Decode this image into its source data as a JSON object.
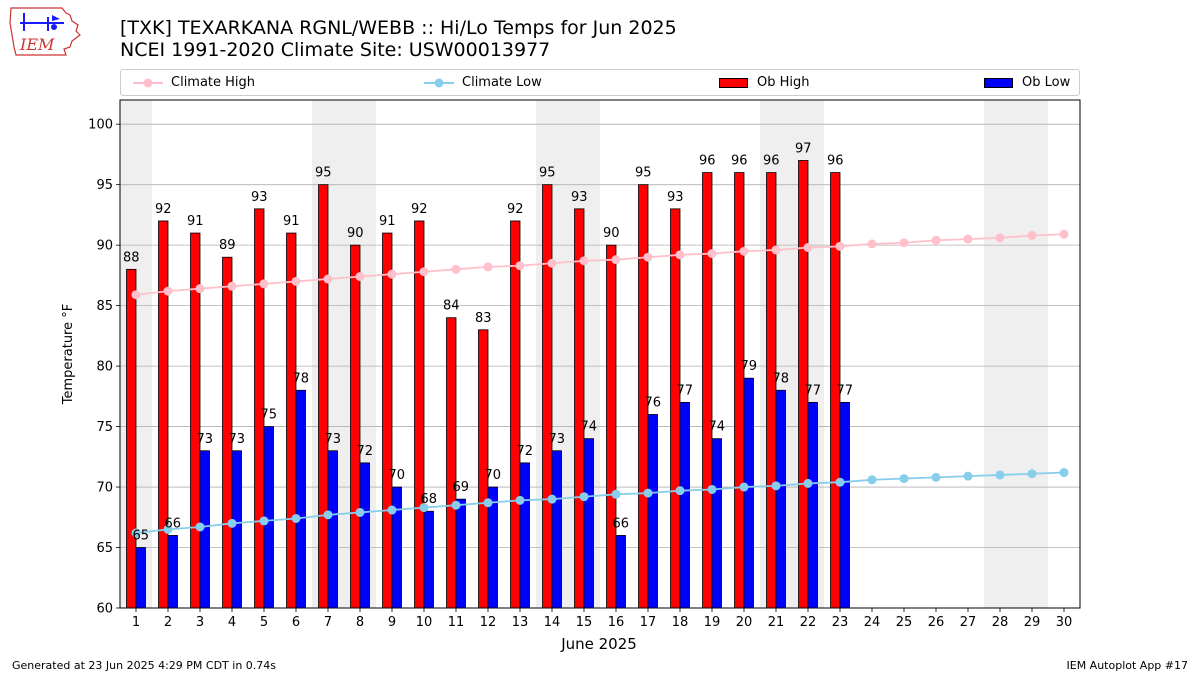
{
  "header": {
    "title_line1": "[TXK] TEXARKANA RGNL/WEBB :: Hi/Lo Temps for Jun 2025",
    "title_line2": "NCEI 1991-2020 Climate Site: USW00013977"
  },
  "logo": {
    "text": "IEM",
    "icon": "iem-logo-icon"
  },
  "legend": [
    {
      "label": "Climate High",
      "color": "#ffc0cb",
      "kind": "line"
    },
    {
      "label": "Climate Low",
      "color": "#87ceeb",
      "kind": "line"
    },
    {
      "label": "Ob High",
      "color": "#ff0000",
      "kind": "bar"
    },
    {
      "label": "Ob Low",
      "color": "#0000ff",
      "kind": "bar"
    }
  ],
  "footer": {
    "left": "Generated at 23 Jun 2025 4:29 PM CDT in 0.74s",
    "right": "IEM Autoplot App #17"
  },
  "chart_data": {
    "type": "bar",
    "xlabel": "June 2025",
    "ylabel": "Temperature °F",
    "ylim": [
      60,
      102
    ],
    "yticks": [
      60,
      65,
      70,
      75,
      80,
      85,
      90,
      95,
      100
    ],
    "grid": "horizontal",
    "legend_placement": "top",
    "days": [
      1,
      2,
      3,
      4,
      5,
      6,
      7,
      8,
      9,
      10,
      11,
      12,
      13,
      14,
      15,
      16,
      17,
      18,
      19,
      20,
      21,
      22,
      23,
      24,
      25,
      26,
      27,
      28,
      29,
      30
    ],
    "weekend_days": [
      1,
      7,
      8,
      14,
      15,
      21,
      22,
      28,
      29
    ],
    "series": [
      {
        "name": "Ob High",
        "color": "#ff0000",
        "values": [
          88,
          92,
          91,
          89,
          93,
          91,
          95,
          90,
          91,
          92,
          84,
          83,
          92,
          95,
          93,
          90,
          95,
          93,
          96,
          96,
          96,
          97,
          96
        ]
      },
      {
        "name": "Ob Low",
        "color": "#0000ff",
        "values": [
          65,
          66,
          73,
          73,
          75,
          78,
          73,
          72,
          70,
          68,
          69,
          70,
          72,
          73,
          74,
          66,
          76,
          77,
          74,
          79,
          78,
          77,
          77
        ]
      },
      {
        "name": "Climate High",
        "color": "#ffc0cb",
        "values": [
          85.9,
          86.2,
          86.4,
          86.6,
          86.8,
          87.0,
          87.2,
          87.4,
          87.6,
          87.8,
          88.0,
          88.2,
          88.3,
          88.5,
          88.7,
          88.8,
          89.0,
          89.2,
          89.3,
          89.5,
          89.6,
          89.8,
          89.9,
          90.1,
          90.2,
          90.4,
          90.5,
          90.6,
          90.8,
          90.9
        ]
      },
      {
        "name": "Climate Low",
        "color": "#87ceeb",
        "values": [
          66.2,
          66.5,
          66.7,
          67.0,
          67.2,
          67.4,
          67.7,
          67.9,
          68.1,
          68.3,
          68.5,
          68.7,
          68.9,
          69.0,
          69.2,
          69.4,
          69.5,
          69.7,
          69.8,
          70.0,
          70.1,
          70.3,
          70.4,
          70.6,
          70.7,
          70.8,
          70.9,
          71.0,
          71.1,
          71.2
        ]
      }
    ]
  }
}
